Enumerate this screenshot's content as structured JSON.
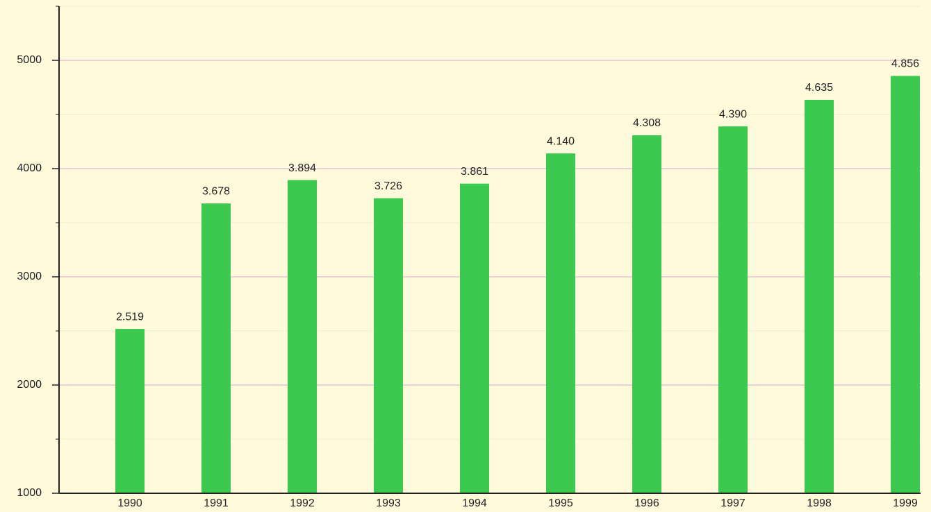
{
  "chart_data": {
    "type": "bar",
    "categories": [
      "1990",
      "1991",
      "1992",
      "1993",
      "1994",
      "1995",
      "1996",
      "1997",
      "1998",
      "1999"
    ],
    "values": [
      2519,
      3678,
      3894,
      3726,
      3861,
      4140,
      4308,
      4390,
      4635,
      4856
    ],
    "value_labels": [
      "2.519",
      "3.678",
      "3.894",
      "3.726",
      "3.861",
      "4.140",
      "4.308",
      "4.390",
      "4.635",
      "4.856"
    ],
    "color": "#3cc94f",
    "ylim": [
      1000,
      5500
    ],
    "yticks": [
      1000,
      2000,
      3000,
      4000,
      5000
    ],
    "minor_yticks": [
      1500,
      2500,
      3500,
      4500,
      5500
    ],
    "grid": true
  }
}
